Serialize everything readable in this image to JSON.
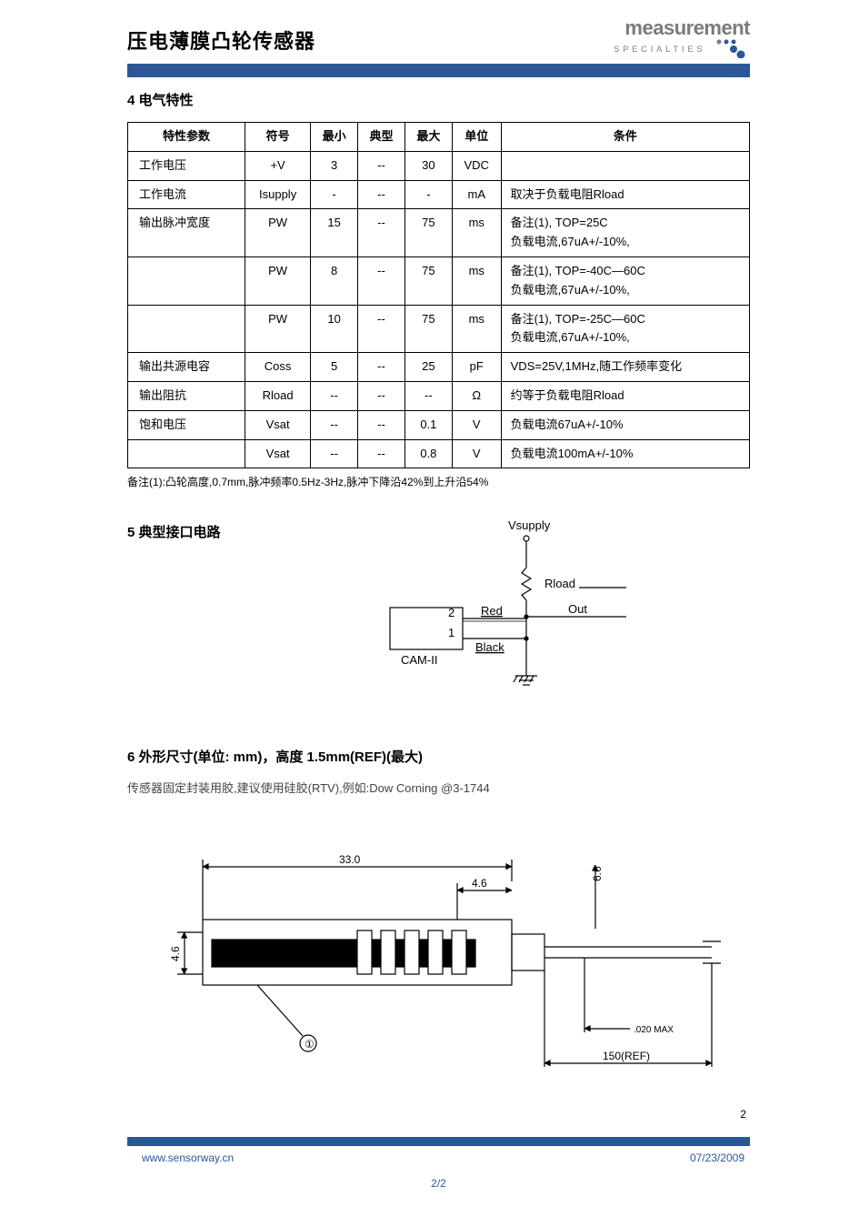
{
  "header": {
    "title": "压电薄膜凸轮传感器",
    "logo_main": "measurement",
    "logo_sub": "SPECIALTIES",
    "logo_colors": {
      "gray": "#7a7a7a",
      "blue": "#2b5797"
    }
  },
  "bar_color": "#2b5797",
  "section4": {
    "heading": "4 电气特性",
    "columns": [
      "特性参数",
      "符号",
      "最小",
      "典型",
      "最大",
      "单位",
      "条件"
    ],
    "rows": [
      {
        "param": "工作电压",
        "sym": "+V",
        "min": "3",
        "typ": "--",
        "max": "30",
        "unit": "VDC",
        "cond": ""
      },
      {
        "param": "工作电流",
        "sym": "Isupply",
        "min": "-",
        "typ": "--",
        "max": "-",
        "unit": "mA",
        "cond": "取决于负载电阻Rload"
      },
      {
        "param": "输出脉冲宽度",
        "sym": "PW",
        "min": "15",
        "typ": "--",
        "max": "75",
        "unit": "ms",
        "cond": "备注(1), TOP=25C\n负载电流,67uA+/-10%,"
      },
      {
        "param": "",
        "sym": "PW",
        "min": "8",
        "typ": "--",
        "max": "75",
        "unit": "ms",
        "cond": "备注(1), TOP=-40C—60C\n负载电流,67uA+/-10%,"
      },
      {
        "param": "",
        "sym": "PW",
        "min": "10",
        "typ": "--",
        "max": "75",
        "unit": "ms",
        "cond": "备注(1), TOP=-25C—60C\n负载电流,67uA+/-10%,"
      },
      {
        "param": "输出共源电容",
        "sym": "Coss",
        "min": "5",
        "typ": "--",
        "max": "25",
        "unit": "pF",
        "cond": "VDS=25V,1MHz,随工作频率变化"
      },
      {
        "param": "输出阻抗",
        "sym": "Rload",
        "min": "--",
        "typ": "--",
        "max": "--",
        "unit": "Ω",
        "cond": "约等于负载电阻Rload"
      },
      {
        "param": "饱和电压",
        "sym": "Vsat",
        "min": "--",
        "typ": "--",
        "max": "0.1",
        "unit": "V",
        "cond": "负载电流67uA+/-10%"
      },
      {
        "param": "",
        "sym": "Vsat",
        "min": "--",
        "typ": "--",
        "max": "0.8",
        "unit": "V",
        "cond": "负载电流100mA+/-10%"
      }
    ],
    "footnote": "备注(1):凸轮高度,0.7mm,脉冲频率0.5Hz-3Hz,脉冲下降沿42%到上升沿54%"
  },
  "section5": {
    "heading": "5 典型接口电路",
    "circuit": {
      "labels": {
        "vsupply": "Vsupply",
        "rload": "Rload",
        "out": "Out",
        "pin2": "2",
        "pin1": "1",
        "red": "Red",
        "black": "Black",
        "block": "CAM-II"
      },
      "font_family": "monospace",
      "font_size": 13,
      "stroke": "#000000",
      "stroke_width": 1.2
    }
  },
  "section6": {
    "heading": "6 外形尺寸(单位: mm)，高度 1.5mm(REF)(最大)",
    "note": "传感器固定封装用胶,建议使用硅胶(RTV),例如:Dow Corning @3-1744",
    "drawing": {
      "dims": {
        "width_total": "33.0",
        "tab_w": "4.6",
        "right_h": "6.6",
        "left_h": "4.6",
        "cable_max": ".020 MAX",
        "cable_len": "150(REF)"
      },
      "callout": "①",
      "stroke": "#000000",
      "font_size": 12
    }
  },
  "footer": {
    "page_num_top": "2",
    "url": "www.sensorway.cn",
    "date": "07/23/2009",
    "page": "2/2"
  }
}
